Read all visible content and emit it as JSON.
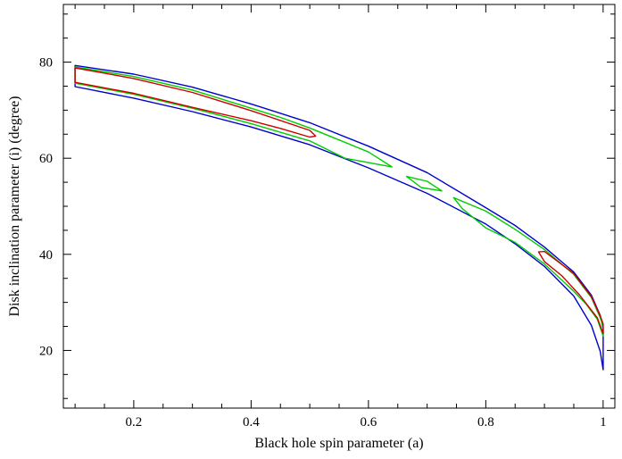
{
  "chart_data": {
    "type": "line",
    "title": "",
    "xlabel": "Black hole spin parameter (a)",
    "ylabel": "Disk inclination parameter (i) (degree)",
    "xlim": [
      0.08,
      1.02
    ],
    "ylim": [
      8,
      92
    ],
    "xticks": [
      0.2,
      0.4,
      0.6,
      0.8,
      1
    ],
    "xtick_labels": [
      "0.2",
      "0.4",
      "0.6",
      "0.8",
      "1"
    ],
    "yticks": [
      20,
      40,
      60,
      80
    ],
    "ytick_labels": [
      "20",
      "40",
      "60",
      "80"
    ],
    "grid": false,
    "legend": "none",
    "series": [
      {
        "color": "#0000cc",
        "closed": true,
        "points": [
          [
            0.1,
            79.3
          ],
          [
            0.2,
            77.5
          ],
          [
            0.3,
            74.8
          ],
          [
            0.4,
            71.3
          ],
          [
            0.5,
            67.4
          ],
          [
            0.6,
            62.5
          ],
          [
            0.7,
            57
          ],
          [
            0.8,
            49.7
          ],
          [
            0.85,
            46
          ],
          [
            0.9,
            41.5
          ],
          [
            0.95,
            36.3
          ],
          [
            0.98,
            31.5
          ],
          [
            0.995,
            27.3
          ],
          [
            1.0,
            24.5
          ],
          [
            1.0,
            16
          ],
          [
            0.995,
            19.8
          ],
          [
            0.98,
            25.2
          ],
          [
            0.95,
            31.3
          ],
          [
            0.9,
            37.5
          ],
          [
            0.85,
            42.2
          ],
          [
            0.8,
            46.3
          ],
          [
            0.7,
            52.7
          ],
          [
            0.6,
            58
          ],
          [
            0.5,
            62.8
          ],
          [
            0.4,
            66.5
          ],
          [
            0.3,
            69.7
          ],
          [
            0.2,
            72.5
          ],
          [
            0.1,
            74.9
          ]
        ]
      },
      {
        "color": "#00cc00",
        "closed": true,
        "points": [
          [
            0.1,
            79
          ],
          [
            0.2,
            77
          ],
          [
            0.3,
            74.2
          ],
          [
            0.4,
            70.4
          ],
          [
            0.45,
            68.5
          ],
          [
            0.5,
            66.3
          ],
          [
            0.6,
            61.3
          ],
          [
            0.64,
            58.2
          ],
          [
            0.56,
            60
          ],
          [
            0.5,
            63.6
          ],
          [
            0.4,
            67.2
          ],
          [
            0.3,
            70.4
          ],
          [
            0.2,
            73.3
          ],
          [
            0.1,
            75.6
          ]
        ]
      },
      {
        "color": "#00cc00",
        "closed": true,
        "points": [
          [
            0.665,
            56.2
          ],
          [
            0.7,
            55.2
          ],
          [
            0.725,
            53.2
          ],
          [
            0.69,
            53.9
          ],
          [
            0.665,
            56.2
          ]
        ]
      },
      {
        "color": "#00cc00",
        "closed": true,
        "points": [
          [
            0.745,
            51.8
          ],
          [
            0.8,
            49
          ],
          [
            0.85,
            45.2
          ],
          [
            0.9,
            41
          ],
          [
            0.95,
            35.8
          ],
          [
            0.98,
            31
          ],
          [
            0.995,
            26.8
          ],
          [
            1.0,
            24.8
          ],
          [
            1.0,
            23
          ],
          [
            0.99,
            26.5
          ],
          [
            0.97,
            29.8
          ],
          [
            0.95,
            32.3
          ],
          [
            0.9,
            38
          ],
          [
            0.85,
            42.5
          ],
          [
            0.8,
            45.5
          ],
          [
            0.76,
            49.5
          ]
        ]
      },
      {
        "color": "#cc0000",
        "closed": true,
        "points": [
          [
            0.1,
            78.8
          ],
          [
            0.2,
            76.6
          ],
          [
            0.3,
            73.7
          ],
          [
            0.4,
            69.9
          ],
          [
            0.5,
            65.8
          ],
          [
            0.51,
            64.6
          ],
          [
            0.5,
            64.4
          ],
          [
            0.45,
            66.2
          ],
          [
            0.4,
            67.8
          ],
          [
            0.3,
            70.6
          ],
          [
            0.2,
            73.5
          ],
          [
            0.1,
            75.8
          ]
        ]
      },
      {
        "color": "#cc0000",
        "closed": true,
        "points": [
          [
            0.89,
            40.5
          ],
          [
            0.9,
            40.6
          ],
          [
            0.95,
            36
          ],
          [
            0.98,
            31.2
          ],
          [
            0.995,
            27.2
          ],
          [
            1.0,
            25.5
          ],
          [
            1.0,
            23.5
          ],
          [
            0.99,
            26.8
          ],
          [
            0.96,
            31.5
          ],
          [
            0.93,
            35.5
          ],
          [
            0.9,
            38.5
          ],
          [
            0.89,
            40.5
          ]
        ]
      }
    ]
  }
}
